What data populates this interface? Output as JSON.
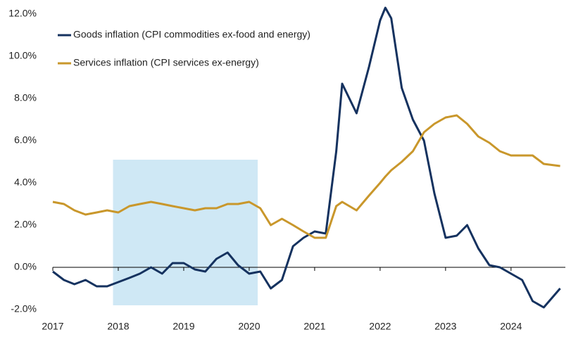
{
  "chart_data": {
    "type": "line",
    "x": [
      2017.0,
      2017.17,
      2017.33,
      2017.5,
      2017.67,
      2017.83,
      2018.0,
      2018.17,
      2018.33,
      2018.5,
      2018.67,
      2018.83,
      2019.0,
      2019.17,
      2019.33,
      2019.5,
      2019.67,
      2019.83,
      2020.0,
      2020.17,
      2020.33,
      2020.5,
      2020.67,
      2020.83,
      2021.0,
      2021.17,
      2021.33,
      2021.42,
      2021.64,
      2021.83,
      2022.0,
      2022.08,
      2022.17,
      2022.33,
      2022.5,
      2022.67,
      2022.83,
      2023.0,
      2023.17,
      2023.33,
      2023.5,
      2023.67,
      2023.83,
      2024.0,
      2024.17,
      2024.33,
      2024.5,
      2024.75
    ],
    "series": [
      {
        "name": "Goods inflation (CPI commodities ex-food and energy)",
        "color": "#15325f",
        "values": [
          -0.2,
          -0.6,
          -0.8,
          -0.6,
          -0.9,
          -0.9,
          -0.7,
          -0.5,
          -0.3,
          0.0,
          -0.3,
          0.2,
          0.2,
          -0.1,
          -0.2,
          0.4,
          0.7,
          0.1,
          -0.3,
          -0.2,
          -1.0,
          -0.6,
          1.0,
          1.4,
          1.7,
          1.6,
          5.5,
          8.7,
          7.3,
          9.5,
          11.7,
          12.3,
          11.8,
          8.5,
          7.0,
          6.0,
          3.5,
          1.4,
          1.5,
          2.0,
          0.9,
          0.1,
          0.0,
          -0.3,
          -0.6,
          -1.6,
          -1.9,
          -1.0
        ]
      },
      {
        "name": "Services inflation (CPI services ex-energy)",
        "color": "#c9972b",
        "values": [
          3.1,
          3.0,
          2.7,
          2.5,
          2.6,
          2.7,
          2.6,
          2.9,
          3.0,
          3.1,
          3.0,
          2.9,
          2.8,
          2.7,
          2.8,
          2.8,
          3.0,
          3.0,
          3.1,
          2.8,
          2.0,
          2.3,
          2.0,
          1.7,
          1.4,
          1.4,
          2.9,
          3.1,
          2.7,
          3.4,
          4.0,
          4.3,
          4.6,
          5.0,
          5.5,
          6.4,
          6.8,
          7.1,
          7.2,
          6.8,
          6.2,
          5.9,
          5.5,
          5.3,
          5.3,
          5.3,
          4.9,
          4.8
        ]
      }
    ],
    "shaded_region": {
      "x": [
        2017.92,
        2020.13
      ],
      "y": [
        5.1,
        -1.8
      ],
      "color": "#cfe8f5"
    },
    "xlim": [
      2017,
      2024.83
    ],
    "xticks": [
      2017,
      2018,
      2019,
      2020,
      2021,
      2022,
      2023,
      2024
    ],
    "ylim": [
      -2,
      12
    ],
    "yticks": [
      {
        "value": -2,
        "label": "-2.0%"
      },
      {
        "value": 0,
        "label": "0.0%"
      },
      {
        "value": 2,
        "label": "2.0%"
      },
      {
        "value": 4,
        "label": "4.0%"
      },
      {
        "value": 6,
        "label": "6.0%"
      },
      {
        "value": 8,
        "label": "8.0%"
      },
      {
        "value": 10,
        "label": "10.0%"
      },
      {
        "value": 12,
        "label": "12.0%"
      }
    ],
    "zero_line": 0,
    "legend": "upper left"
  }
}
